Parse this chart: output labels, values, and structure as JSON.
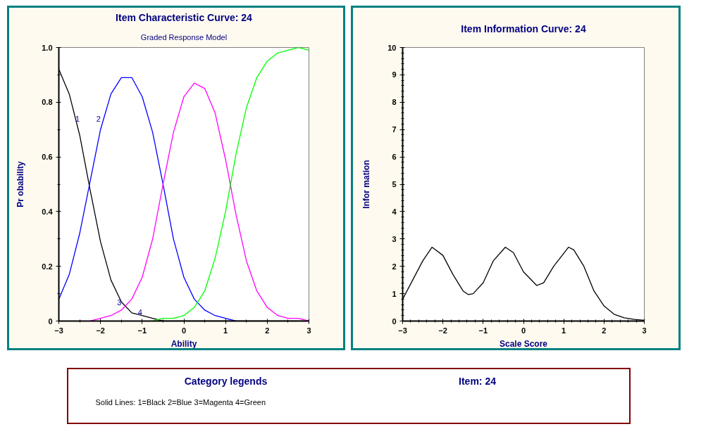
{
  "chart_data": [
    {
      "type": "line",
      "title": "Item Characteristic Curve: 24",
      "subtitle": "Graded Response Model",
      "xlabel": "Ability",
      "ylabel": "Pr obability",
      "x": [
        -3,
        -2.75,
        -2.5,
        -2.25,
        -2,
        -1.75,
        -1.5,
        -1.25,
        -1,
        -0.75,
        -0.5,
        -0.25,
        0,
        0.25,
        0.5,
        0.75,
        1,
        1.25,
        1.5,
        1.75,
        2,
        2.25,
        2.5,
        2.75,
        3
      ],
      "series": [
        {
          "color": "#000000",
          "values": [
            0.92,
            0.83,
            0.68,
            0.48,
            0.29,
            0.15,
            0.07,
            0.03,
            0.02,
            0.01,
            0,
            0,
            0,
            0,
            0,
            0,
            0,
            0,
            0,
            0,
            0,
            0,
            0,
            0,
            0
          ]
        },
        {
          "color": "#0000ff",
          "values": [
            0.08,
            0.17,
            0.32,
            0.51,
            0.7,
            0.83,
            0.89,
            0.89,
            0.82,
            0.69,
            0.5,
            0.3,
            0.16,
            0.08,
            0.04,
            0.02,
            0.01,
            0,
            null,
            null,
            null,
            null,
            null,
            null,
            null
          ]
        },
        {
          "color": "#ff00ff",
          "values": [
            null,
            null,
            null,
            0,
            0.01,
            0.02,
            0.04,
            0.08,
            0.16,
            0.3,
            0.5,
            0.69,
            0.82,
            0.87,
            0.85,
            0.76,
            0.59,
            0.39,
            0.22,
            0.11,
            0.05,
            0.02,
            0.01,
            0.01,
            0
          ]
        },
        {
          "color": "#00ff00",
          "values": [
            null,
            null,
            null,
            null,
            null,
            null,
            null,
            null,
            null,
            0,
            0.01,
            0.01,
            0.02,
            0.05,
            0.11,
            0.23,
            0.4,
            0.61,
            0.78,
            0.89,
            0.95,
            0.98,
            0.99,
            1,
            0.99
          ]
        }
      ],
      "xlim": [
        -3,
        3
      ],
      "ylim": [
        0,
        1
      ],
      "xticks": [
        -3,
        -2,
        -1,
        0,
        1,
        2,
        3
      ],
      "yticks": [
        {
          "value": 0,
          "label": "0"
        },
        0.2,
        0.4,
        0.6,
        0.8,
        {
          "value": 1,
          "label": "1.0"
        }
      ],
      "line_style": "solid",
      "annotations": [
        {
          "text": "1",
          "x": -2.55,
          "y": 0.72
        },
        {
          "text": "2",
          "x": -2.05,
          "y": 0.72
        },
        {
          "text": "3",
          "x": -1.55,
          "y": 0.05
        },
        {
          "text": "4",
          "x": -1.05,
          "y": 0.015
        }
      ]
    },
    {
      "type": "line",
      "title": "Item Information Curve: 24",
      "xlabel": "Scale Score",
      "ylabel": "Infor mation",
      "x": [
        -3,
        -2.75,
        -2.5,
        -2.27,
        -2,
        -1.75,
        -1.5,
        -1.37,
        -1.25,
        -1,
        -0.75,
        -0.45,
        -0.25,
        0,
        0.33,
        0.5,
        0.75,
        1.12,
        1.25,
        1.5,
        1.75,
        2,
        2.25,
        2.5,
        2.75,
        3
      ],
      "series": [
        {
          "color": "#000000",
          "values": [
            0.8,
            1.5,
            2.2,
            2.7,
            2.4,
            1.7,
            1.1,
            0.97,
            1.0,
            1.4,
            2.2,
            2.7,
            2.5,
            1.8,
            1.3,
            1.4,
            2.0,
            2.7,
            2.6,
            2.0,
            1.1,
            0.55,
            0.25,
            0.12,
            0.06,
            0.03
          ]
        }
      ],
      "xlim": [
        -3,
        3
      ],
      "ylim": [
        0,
        10
      ],
      "xticks": [
        -3,
        -2,
        -1,
        0,
        1,
        2,
        3
      ],
      "yticks": [
        0,
        1,
        2,
        3,
        4,
        5,
        6,
        7,
        8,
        9,
        10
      ],
      "line_style": "solid"
    },
    {
      "type": "other",
      "title": "Category legends",
      "subtitle": "Item: 24",
      "annotations": [
        "Solid Lines: 1=Black  2=Blue  3=Magenta  4=Green"
      ]
    }
  ]
}
